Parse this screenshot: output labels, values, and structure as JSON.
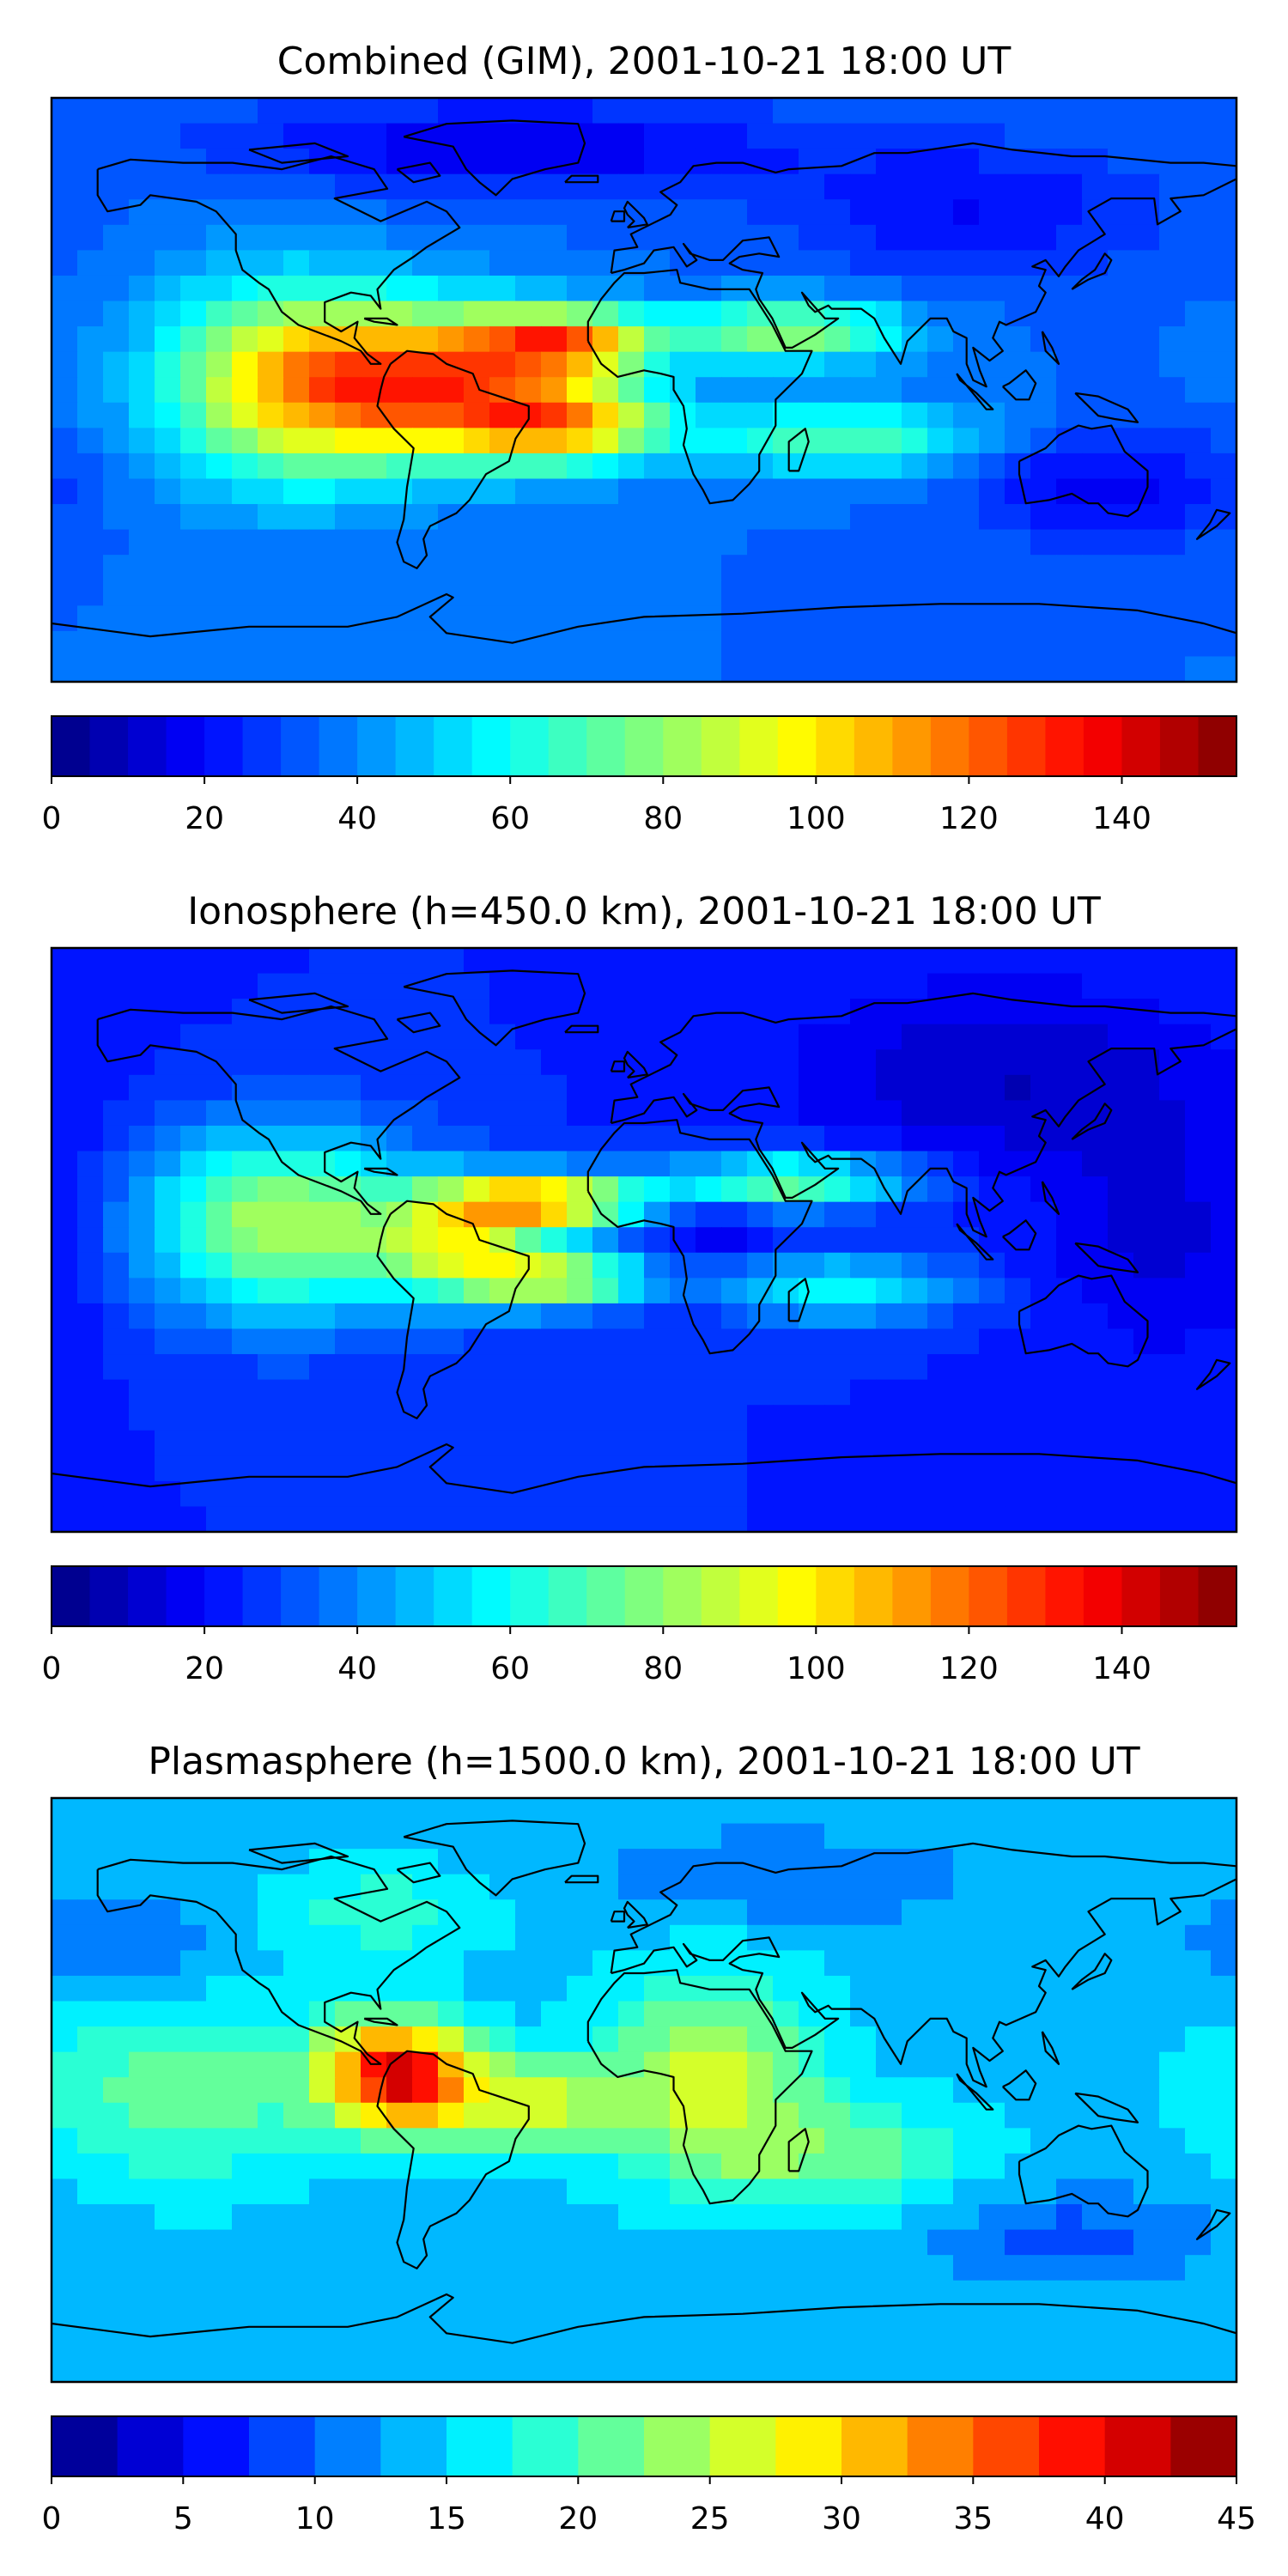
{
  "panels": [
    {
      "title": "Combined (GIM), 2001-10-21 18:00 UT",
      "colorbar": {
        "min": 0,
        "max": 155,
        "levels": 31,
        "ticks": [
          "0",
          "20",
          "40",
          "60",
          "80",
          "100",
          "120",
          "140"
        ]
      },
      "base_level": 35,
      "blobs": [
        {
          "label": "equatorial-anomaly-south-america",
          "lon": -65,
          "lat": 2,
          "amplitude": 75,
          "lon_spread": 30,
          "lat_spread": 16
        },
        {
          "label": "north-atlantic-crest",
          "lon": -25,
          "lat": 15,
          "amplitude": 70,
          "lon_spread": 20,
          "lat_spread": 7
        },
        {
          "label": "south-atlantic-crest",
          "lon": -25,
          "lat": -10,
          "amplitude": 65,
          "lon_spread": 22,
          "lat_spread": 9
        },
        {
          "label": "east-pacific",
          "lon": -110,
          "lat": 2,
          "amplitude": 55,
          "lon_spread": 28,
          "lat_spread": 22
        },
        {
          "label": "arabia-crest",
          "lon": 45,
          "lat": 18,
          "amplitude": 45,
          "lon_spread": 25,
          "lat_spread": 7
        },
        {
          "label": "africa-indian-ocean-south",
          "lon": 60,
          "lat": -15,
          "amplitude": 35,
          "lon_spread": 30,
          "lat_spread": 8
        },
        {
          "label": "arctic-low",
          "lon": -40,
          "lat": 75,
          "amplitude": -20,
          "lon_spread": 60,
          "lat_spread": 10
        },
        {
          "label": "asia-low",
          "lon": 100,
          "lat": 55,
          "amplitude": -15,
          "lon_spread": 40,
          "lat_spread": 15
        },
        {
          "label": "australia-low",
          "lon": 140,
          "lat": -30,
          "amplitude": -18,
          "lon_spread": 30,
          "lat_spread": 12
        }
      ]
    },
    {
      "title": "Ionosphere  (h=450.0 km), 2001-10-21 18:00 UT",
      "colorbar": {
        "min": 0,
        "max": 155,
        "levels": 31,
        "ticks": [
          "0",
          "20",
          "40",
          "60",
          "80",
          "100",
          "120",
          "140"
        ]
      },
      "base_level": 25,
      "blobs": [
        {
          "label": "east-pacific",
          "lon": -110,
          "lat": 5,
          "amplitude": 60,
          "lon_spread": 30,
          "lat_spread": 20
        },
        {
          "label": "north-atlantic-crest",
          "lon": -30,
          "lat": 12,
          "amplitude": 80,
          "lon_spread": 22,
          "lat_spread": 6
        },
        {
          "label": "south-america",
          "lon": -55,
          "lat": -2,
          "amplitude": 55,
          "lon_spread": 18,
          "lat_spread": 12
        },
        {
          "label": "south-atlantic-crest",
          "lon": -25,
          "lat": -12,
          "amplitude": 60,
          "lon_spread": 18,
          "lat_spread": 6
        },
        {
          "label": "arabia-crest",
          "lon": 45,
          "lat": 18,
          "amplitude": 50,
          "lon_spread": 25,
          "lat_spread": 6
        },
        {
          "label": "africa-indian-ocean-south",
          "lon": 60,
          "lat": -15,
          "amplitude": 35,
          "lon_spread": 25,
          "lat_spread": 7
        },
        {
          "label": "central-africa-trough",
          "lon": 20,
          "lat": 3,
          "amplitude": -12,
          "lon_spread": 12,
          "lat_spread": 5
        },
        {
          "label": "asia-low",
          "lon": 110,
          "lat": 50,
          "amplitude": -15,
          "lon_spread": 45,
          "lat_spread": 20
        },
        {
          "label": "west-pacific-low",
          "lon": 160,
          "lat": 0,
          "amplitude": -12,
          "lon_spread": 25,
          "lat_spread": 25
        }
      ]
    },
    {
      "title": "Plasmasphere (h=1500.0 km), 2001-10-21 18:00 UT",
      "colorbar": {
        "min": 0,
        "max": 45,
        "levels": 18,
        "ticks": [
          "0",
          "5",
          "10",
          "15",
          "20",
          "25",
          "30",
          "35",
          "40",
          "45"
        ]
      },
      "base_level": 14,
      "blobs": [
        {
          "label": "south-america-peak",
          "lon": -75,
          "lat": 5,
          "amplitude": 26,
          "lon_spread": 16,
          "lat_spread": 12
        },
        {
          "label": "south-atlantic",
          "lon": -35,
          "lat": -5,
          "amplitude": 12,
          "lon_spread": 20,
          "lat_spread": 10
        },
        {
          "label": "africa",
          "lon": 20,
          "lat": 5,
          "amplitude": 12,
          "lon_spread": 22,
          "lat_spread": 22
        },
        {
          "label": "east-pacific",
          "lon": -140,
          "lat": 0,
          "amplitude": 8,
          "lon_spread": 30,
          "lat_spread": 20
        },
        {
          "label": "south-indian-ocean",
          "lon": 60,
          "lat": -20,
          "amplitude": 7,
          "lon_spread": 30,
          "lat_spread": 12
        },
        {
          "label": "north-america",
          "lon": -80,
          "lat": 55,
          "amplitude": 5,
          "lon_spread": 25,
          "lat_spread": 10
        },
        {
          "label": "asia-low",
          "lon": 40,
          "lat": 65,
          "amplitude": -4,
          "lon_spread": 40,
          "lat_spread": 10
        },
        {
          "label": "southern-ocean-low",
          "lon": 130,
          "lat": -45,
          "amplitude": -5,
          "lon_spread": 30,
          "lat_spread": 10
        },
        {
          "label": "north-pacific-low",
          "lon": -160,
          "lat": 45,
          "amplitude": -4,
          "lon_spread": 25,
          "lat_spread": 12
        }
      ]
    }
  ],
  "colors": {
    "jet": [
      "#00007f",
      "#0000ff",
      "#007fff",
      "#00ffff",
      "#7fff7f",
      "#ffff00",
      "#ff7f00",
      "#ff0000",
      "#7f0000"
    ],
    "axes": "#000000",
    "coastline": "#000000"
  }
}
